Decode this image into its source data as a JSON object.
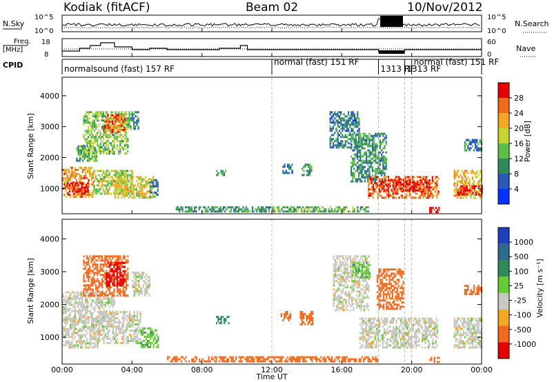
{
  "header": {
    "station": "Kodiak (fitACF)",
    "beam": "Beam 02",
    "date": "10/Nov/2012"
  },
  "strips": {
    "nsky_label": "N.Sky",
    "nsky_ticks": [
      "10^5",
      "10^0"
    ],
    "nsearch_label": "N.Search",
    "nsearch_ticks": [
      "10^5",
      "10^0"
    ],
    "freq_label_1": "Freq.",
    "freq_label_2": "[MHz]",
    "freq_ticks": [
      "18",
      "8"
    ],
    "nave_label": "Nave",
    "nave_ticks": [
      "60",
      "0"
    ],
    "cpid_label": "CPID",
    "cpid_segments": [
      {
        "start": 0.0,
        "end": 12.0,
        "label": "normalsound (fast) 157 RF"
      },
      {
        "start": 12.0,
        "end": 18.1,
        "label": "normal (fast) 151 RF"
      },
      {
        "start": 18.1,
        "end": 19.6,
        "label": "1313 RF"
      },
      {
        "start": 19.6,
        "end": 24.0,
        "label": "1313 RF"
      },
      {
        "start": 20.0,
        "end": 24.0,
        "label": "normal (fast) 151 RF"
      }
    ]
  },
  "panels": {
    "power": {
      "ylabel": "Slant Range [km]",
      "cbar_title": "Power [dB]",
      "cbar_ticks": [
        "28",
        "24",
        "20",
        "16",
        "12",
        "8",
        "4"
      ]
    },
    "velocity": {
      "ylabel": "Slant Range [km]",
      "cbar_title": "Velocity [m s⁻¹]",
      "cbar_ticks": [
        "1000",
        "500",
        "100",
        "25",
        "-25",
        "-100",
        "-500",
        "-1000"
      ]
    },
    "yticks": [
      "4000",
      "3000",
      "2000",
      "1000"
    ],
    "xticks": [
      "00:00",
      "04:00",
      "08:00",
      "12:00",
      "16:00",
      "20:00",
      "00:00"
    ],
    "xlabel": "Time UT"
  },
  "colors": {
    "power_scale": [
      "#0033ff",
      "#2b59b8",
      "#2e8b57",
      "#5cbf4a",
      "#c7d531",
      "#f5a623",
      "#f26b1d",
      "#e60000"
    ],
    "velocity_scale": [
      "#1f3fbf",
      "#2e6b8f",
      "#2e8b57",
      "#66cc33",
      "#c8c8c0",
      "#f5a623",
      "#f26b1d",
      "#e60000"
    ]
  },
  "chart_data": [
    {
      "type": "heatmap",
      "title": "Power",
      "x_unit": "hours UT",
      "y_unit": "km",
      "xlim": [
        0,
        24
      ],
      "ylim": [
        180,
        4600
      ],
      "clim": [
        0,
        30
      ],
      "regions": [
        {
          "t0": 0.0,
          "t1": 1.8,
          "r0": 700,
          "r1": 1700,
          "v": 22
        },
        {
          "t0": 0.3,
          "t1": 1.5,
          "r0": 800,
          "r1": 1200,
          "v": 28
        },
        {
          "t0": 1.8,
          "t1": 4.0,
          "r0": 800,
          "r1": 1600,
          "v": 16
        },
        {
          "t0": 3.0,
          "t1": 5.2,
          "r0": 700,
          "r1": 1400,
          "v": 18
        },
        {
          "t0": 1.2,
          "t1": 3.8,
          "r0": 2100,
          "r1": 3500,
          "v": 14
        },
        {
          "t0": 2.4,
          "t1": 3.6,
          "r0": 2800,
          "r1": 3400,
          "v": 24
        },
        {
          "t0": 3.8,
          "t1": 4.4,
          "r0": 2900,
          "r1": 3500,
          "v": 10
        },
        {
          "t0": 0.8,
          "t1": 2.0,
          "r0": 1900,
          "r1": 2400,
          "v": 12
        },
        {
          "t0": 5.0,
          "t1": 5.5,
          "r0": 700,
          "r1": 1300,
          "v": 8
        },
        {
          "t0": 6.5,
          "t1": 12.0,
          "r0": 250,
          "r1": 420,
          "v": 10
        },
        {
          "t0": 12.0,
          "t1": 17.5,
          "r0": 250,
          "r1": 420,
          "v": 12
        },
        {
          "t0": 8.8,
          "t1": 9.4,
          "r0": 1400,
          "r1": 1600,
          "v": 10
        },
        {
          "t0": 12.6,
          "t1": 13.2,
          "r0": 1500,
          "r1": 1800,
          "v": 6
        },
        {
          "t0": 13.7,
          "t1": 14.3,
          "r0": 1400,
          "r1": 1800,
          "v": 10
        },
        {
          "t0": 15.3,
          "t1": 17.0,
          "r0": 2300,
          "r1": 3500,
          "v": 8
        },
        {
          "t0": 16.5,
          "t1": 18.5,
          "r0": 1200,
          "r1": 2800,
          "v": 10
        },
        {
          "t0": 17.5,
          "t1": 21.5,
          "r0": 700,
          "r1": 1400,
          "v": 24
        },
        {
          "t0": 18.2,
          "t1": 21.0,
          "r0": 900,
          "r1": 1300,
          "v": 28
        },
        {
          "t0": 21.0,
          "t1": 21.6,
          "r0": 250,
          "r1": 400,
          "v": 28
        },
        {
          "t0": 22.4,
          "t1": 24.0,
          "r0": 700,
          "r1": 1600,
          "v": 20
        },
        {
          "t0": 22.6,
          "t1": 24.0,
          "r0": 800,
          "r1": 1100,
          "v": 28
        },
        {
          "t0": 23.0,
          "t1": 24.0,
          "r0": 2200,
          "r1": 2600,
          "v": 8
        }
      ]
    },
    {
      "type": "heatmap",
      "title": "Velocity",
      "x_unit": "hours UT",
      "y_unit": "km",
      "xlim": [
        0,
        24
      ],
      "ylim": [
        180,
        4600
      ],
      "clim": [
        -1000,
        1000
      ],
      "regions": [
        {
          "t0": 0.0,
          "t1": 2.0,
          "r0": 700,
          "r1": 1600,
          "v": 0
        },
        {
          "t0": 2.0,
          "t1": 4.5,
          "r0": 800,
          "r1": 1800,
          "v": 0
        },
        {
          "t0": 4.5,
          "t1": 5.5,
          "r0": 700,
          "r1": 1300,
          "v": 80
        },
        {
          "t0": 0.0,
          "t1": 3.0,
          "r0": 1500,
          "r1": 2400,
          "v": 0
        },
        {
          "t0": 1.2,
          "t1": 3.8,
          "r0": 2300,
          "r1": 3500,
          "v": -300
        },
        {
          "t0": 2.5,
          "t1": 3.6,
          "r0": 2600,
          "r1": 3300,
          "v": -600
        },
        {
          "t0": 4.0,
          "t1": 5.0,
          "r0": 2300,
          "r1": 3000,
          "v": 0
        },
        {
          "t0": 6.0,
          "t1": 12.0,
          "r0": 250,
          "r1": 420,
          "v": -150
        },
        {
          "t0": 12.0,
          "t1": 18.0,
          "r0": 250,
          "r1": 420,
          "v": -150
        },
        {
          "t0": 8.8,
          "t1": 9.5,
          "r0": 1400,
          "r1": 1650,
          "v": 200
        },
        {
          "t0": 12.5,
          "t1": 13.1,
          "r0": 1500,
          "r1": 1800,
          "v": -300
        },
        {
          "t0": 13.6,
          "t1": 14.3,
          "r0": 1400,
          "r1": 1800,
          "v": -200
        },
        {
          "t0": 15.5,
          "t1": 17.5,
          "r0": 1800,
          "r1": 3500,
          "v": 0
        },
        {
          "t0": 16.6,
          "t1": 17.6,
          "r0": 2800,
          "r1": 3300,
          "v": 80
        },
        {
          "t0": 17.0,
          "t1": 21.5,
          "r0": 700,
          "r1": 1600,
          "v": 0
        },
        {
          "t0": 18.0,
          "t1": 19.5,
          "r0": 1900,
          "r1": 3100,
          "v": -400
        },
        {
          "t0": 21.0,
          "t1": 21.6,
          "r0": 250,
          "r1": 400,
          "v": -150
        },
        {
          "t0": 22.4,
          "t1": 24.0,
          "r0": 700,
          "r1": 1600,
          "v": 0
        },
        {
          "t0": 23.0,
          "t1": 24.0,
          "r0": 2300,
          "r1": 2600,
          "v": -200
        }
      ]
    }
  ]
}
